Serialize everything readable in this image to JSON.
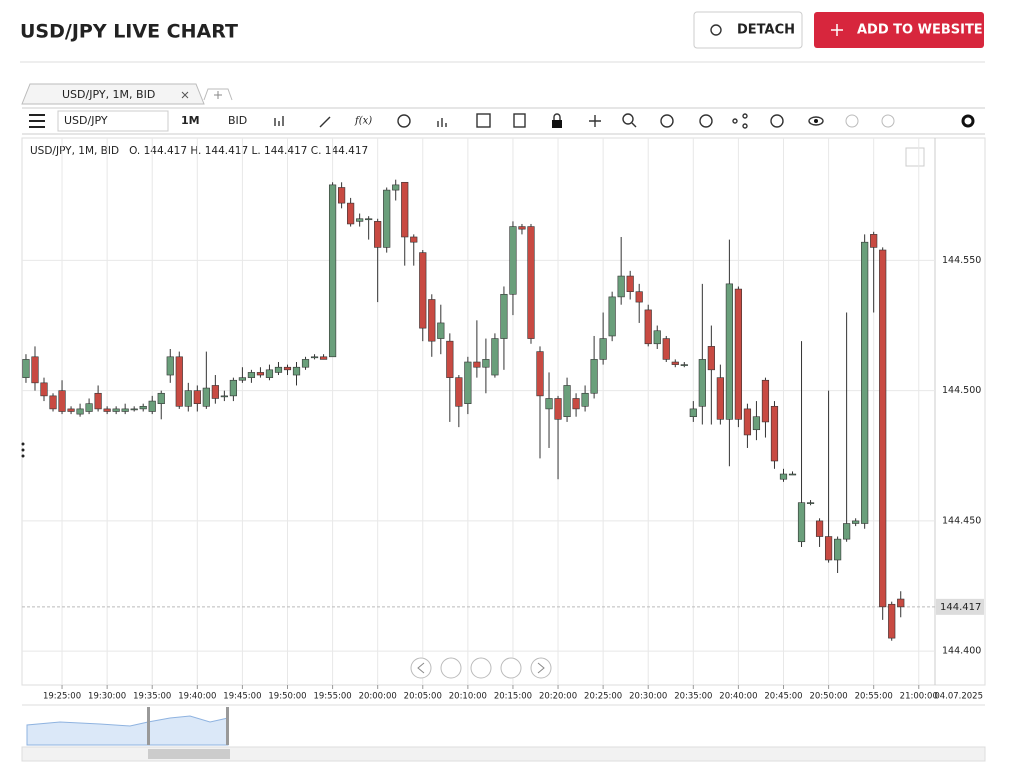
{
  "header": {
    "title": "USD/JPY LIVE CHART",
    "detach": "DETACH",
    "add": "ADD TO WEBSITE"
  },
  "tabs": [
    "USD/JPY, 1M, BID"
  ],
  "toolbar": {
    "symbol": "USD/JPY",
    "interval": "1M",
    "price_type": "BID",
    "formula": "f(x)"
  },
  "chart_data": {
    "type": "candlestick",
    "legend_text": "USD/JPY, 1M, BID   O. 144.417 H. 144.417 L. 144.417 C. 144.417",
    "open": [
      144.505,
      144.513,
      144.503,
      144.498,
      144.5,
      144.493,
      144.491,
      144.492,
      144.499,
      144.493,
      144.492,
      144.492,
      144.493,
      144.493,
      144.492,
      144.495,
      144.506,
      144.513,
      144.494,
      144.5,
      144.494,
      144.502,
      144.498,
      144.498,
      144.504,
      144.505,
      144.507,
      144.505,
      144.507,
      144.509,
      144.506,
      144.509,
      144.513,
      144.513,
      144.513,
      144.578,
      144.572,
      144.565,
      144.566,
      144.565,
      144.555,
      144.577,
      144.58,
      144.559,
      144.553,
      144.535,
      144.52,
      144.519,
      144.505,
      144.495,
      144.511,
      144.509,
      144.506,
      144.52,
      144.537,
      144.563,
      144.563,
      144.515,
      144.493,
      144.497,
      144.49,
      144.497,
      144.494,
      144.499,
      144.512,
      144.521,
      144.536,
      144.544,
      144.538,
      144.531,
      144.518,
      144.52,
      144.511,
      144.51,
      144.49,
      144.494,
      144.517,
      144.505,
      144.489,
      144.539,
      144.493,
      144.485,
      144.504,
      144.494,
      144.466,
      144.468,
      144.442,
      144.457,
      144.45,
      144.444,
      144.435,
      144.443,
      144.449,
      144.449,
      144.56,
      144.554,
      144.418,
      144.42
    ],
    "high": [
      144.514,
      144.517,
      144.505,
      144.499,
      144.504,
      144.494,
      144.495,
      144.497,
      144.502,
      144.494,
      144.494,
      144.495,
      144.494,
      144.495,
      144.498,
      144.5,
      144.516,
      144.515,
      144.503,
      144.502,
      144.515,
      144.506,
      144.5,
      144.505,
      144.509,
      144.508,
      144.509,
      144.51,
      144.511,
      144.51,
      144.511,
      144.513,
      144.514,
      144.514,
      144.58,
      144.58,
      144.574,
      144.568,
      144.567,
      144.566,
      144.578,
      144.581,
      144.58,
      144.56,
      144.554,
      144.537,
      144.533,
      144.522,
      144.506,
      144.513,
      144.527,
      144.52,
      144.522,
      144.54,
      144.565,
      144.564,
      144.564,
      144.517,
      144.507,
      144.498,
      144.505,
      144.499,
      144.502,
      144.521,
      144.53,
      144.538,
      144.559,
      144.546,
      144.541,
      144.533,
      144.525,
      144.521,
      144.512,
      144.511,
      144.496,
      144.541,
      144.525,
      144.51,
      144.558,
      144.54,
      144.495,
      144.496,
      144.505,
      144.496,
      144.47,
      144.469,
      144.519,
      144.458,
      144.451,
      144.5,
      144.444,
      144.53,
      144.451,
      144.56,
      144.561,
      144.555,
      144.419,
      144.423
    ],
    "low": [
      144.503,
      144.5,
      144.496,
      144.492,
      144.491,
      144.491,
      144.49,
      144.491,
      144.492,
      144.491,
      144.491,
      144.491,
      144.492,
      144.492,
      144.491,
      144.489,
      144.503,
      144.493,
      144.492,
      144.492,
      144.493,
      144.495,
      144.496,
      144.496,
      144.503,
      144.503,
      144.505,
      144.504,
      144.506,
      144.506,
      144.502,
      144.508,
      144.512,
      144.512,
      144.513,
      144.57,
      144.563,
      144.563,
      144.558,
      144.534,
      144.553,
      144.573,
      144.548,
      144.548,
      144.519,
      144.513,
      144.514,
      144.488,
      144.486,
      144.491,
      144.505,
      144.499,
      144.505,
      144.508,
      144.529,
      144.56,
      144.518,
      144.474,
      144.478,
      144.466,
      144.488,
      144.49,
      144.492,
      144.497,
      144.51,
      144.519,
      144.533,
      144.535,
      144.526,
      144.517,
      144.516,
      144.511,
      144.509,
      144.509,
      144.488,
      144.487,
      144.487,
      144.487,
      144.471,
      144.486,
      144.478,
      144.481,
      144.482,
      144.47,
      144.465,
      144.468,
      144.44,
      144.456,
      144.44,
      144.434,
      144.43,
      144.442,
      144.448,
      144.447,
      144.53,
      144.412,
      144.404,
      144.413
    ],
    "close": [
      144.512,
      144.503,
      144.498,
      144.493,
      144.492,
      144.492,
      144.493,
      144.495,
      144.493,
      144.492,
      144.493,
      144.493,
      144.493,
      144.494,
      144.496,
      144.499,
      144.513,
      144.494,
      144.5,
      144.495,
      144.501,
      144.497,
      144.498,
      144.504,
      144.505,
      144.507,
      144.506,
      144.508,
      144.509,
      144.508,
      144.509,
      144.512,
      144.513,
      144.512,
      144.579,
      144.572,
      144.564,
      144.566,
      144.566,
      144.555,
      144.577,
      144.579,
      144.559,
      144.557,
      144.524,
      144.519,
      144.526,
      144.505,
      144.494,
      144.511,
      144.509,
      144.512,
      144.52,
      144.537,
      144.563,
      144.562,
      144.52,
      144.498,
      144.497,
      144.489,
      144.502,
      144.493,
      144.499,
      144.512,
      144.52,
      144.536,
      144.544,
      144.538,
      144.534,
      144.518,
      144.523,
      144.512,
      144.51,
      144.51,
      144.493,
      144.512,
      144.508,
      144.489,
      144.541,
      144.489,
      144.483,
      144.49,
      144.488,
      144.473,
      144.468,
      144.468,
      144.457,
      144.457,
      144.444,
      144.435,
      144.443,
      144.449,
      144.45,
      144.557,
      144.555,
      144.417,
      144.405,
      144.417
    ],
    "up_color": "#6a9f7b",
    "down_color": "#c84a42",
    "xlim": [
      -0.44,
      100.8
    ],
    "xticks": [
      {
        "value": 4,
        "label": "19:25:00"
      },
      {
        "value": 9,
        "label": "19:30:00"
      },
      {
        "value": 14,
        "label": "19:35:00"
      },
      {
        "value": 19,
        "label": "19:40:00"
      },
      {
        "value": 24,
        "label": "19:45:00"
      },
      {
        "value": 29,
        "label": "19:50:00"
      },
      {
        "value": 34,
        "label": "19:55:00"
      },
      {
        "value": 39,
        "label": "20:00:00"
      },
      {
        "value": 44,
        "label": "20:05:00"
      },
      {
        "value": 49,
        "label": "20:10:00"
      },
      {
        "value": 54,
        "label": "20:15:00"
      },
      {
        "value": 59,
        "label": "20:20:00"
      },
      {
        "value": 64,
        "label": "20:25:00"
      },
      {
        "value": 69,
        "label": "20:30:00"
      },
      {
        "value": 74,
        "label": "20:35:00"
      },
      {
        "value": 79,
        "label": "20:40:00"
      },
      {
        "value": 84,
        "label": "20:45:00"
      },
      {
        "value": 89,
        "label": "20:50:00"
      },
      {
        "value": 94,
        "label": "20:55:00"
      },
      {
        "value": 99,
        "label": "21:00:00"
      }
    ],
    "date_label": "04.07.2025",
    "ylim": [
      144.387,
      144.597
    ],
    "yticks": [
      {
        "value": 144.4,
        "label": "144.400"
      },
      {
        "value": 144.45,
        "label": "144.450"
      },
      {
        "value": 144.5,
        "label": "144.500"
      },
      {
        "value": 144.55,
        "label": "144.550"
      }
    ],
    "last_price": 144.417,
    "grid": true
  }
}
